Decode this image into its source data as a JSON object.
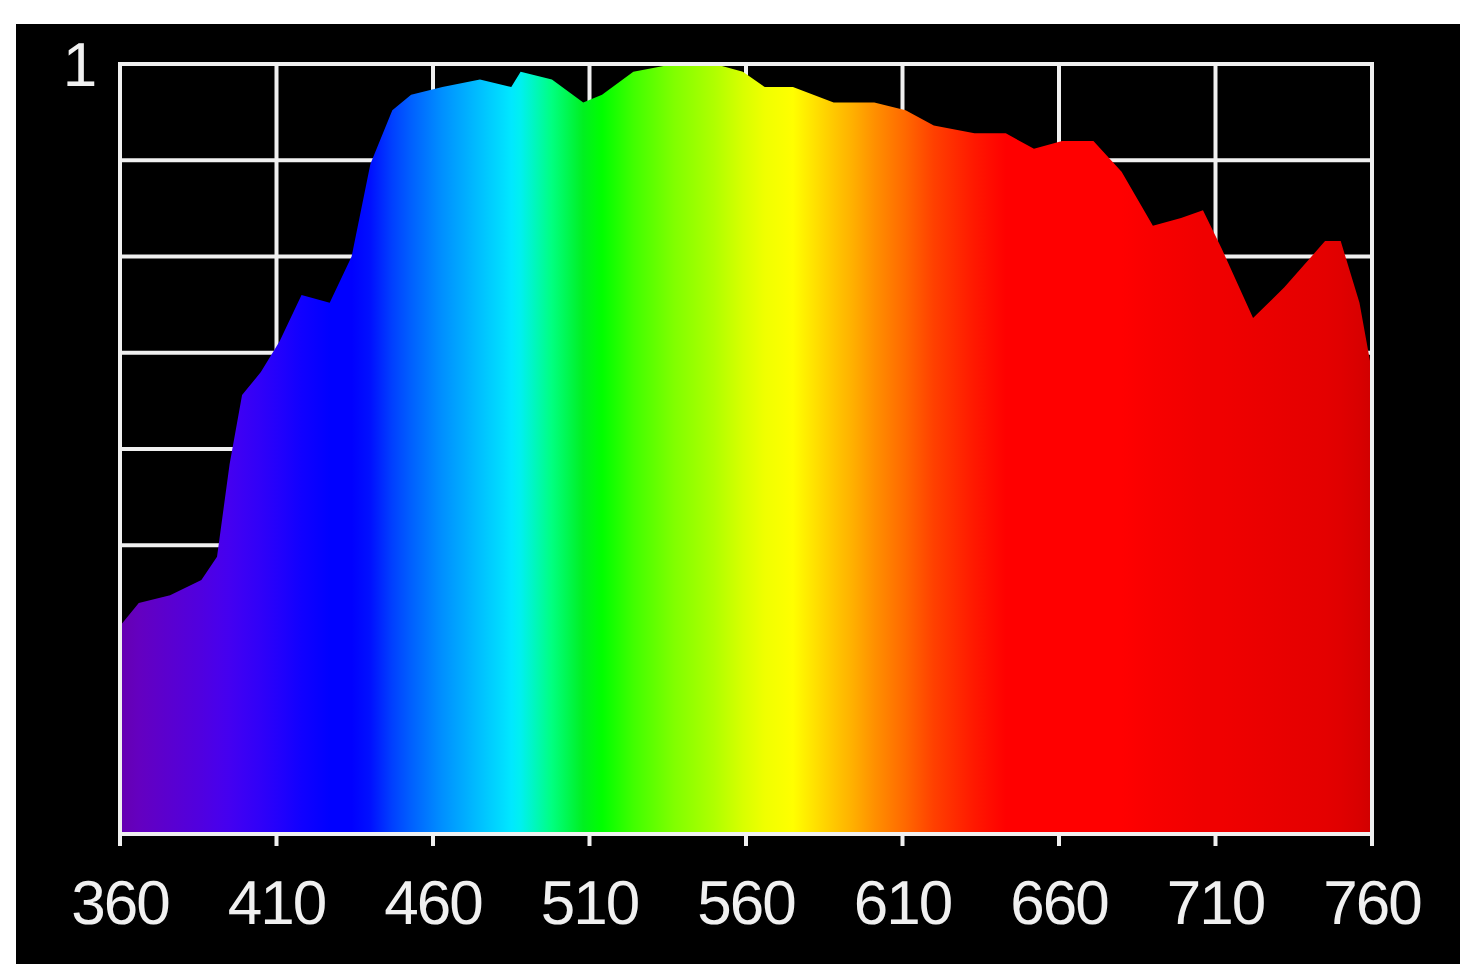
{
  "chart_data": {
    "type": "area",
    "x": [
      360,
      366,
      376,
      386,
      391,
      395,
      399,
      405,
      411,
      418,
      427,
      434,
      440,
      447,
      453,
      463,
      475,
      485,
      488,
      498,
      508,
      514,
      524,
      537,
      550,
      559,
      566,
      575,
      588,
      594,
      601,
      611,
      620,
      633,
      643,
      652,
      661,
      671,
      680,
      690,
      699,
      706,
      712,
      722,
      732,
      745,
      750,
      756,
      760
    ],
    "values": [
      0.27,
      0.3,
      0.31,
      0.33,
      0.36,
      0.48,
      0.57,
      0.6,
      0.64,
      0.7,
      0.69,
      0.75,
      0.87,
      0.94,
      0.96,
      0.97,
      0.98,
      0.97,
      0.99,
      0.98,
      0.95,
      0.96,
      0.99,
      1.0,
      1.0,
      0.99,
      0.97,
      0.97,
      0.95,
      0.95,
      0.95,
      0.94,
      0.92,
      0.91,
      0.91,
      0.89,
      0.9,
      0.9,
      0.86,
      0.79,
      0.8,
      0.81,
      0.76,
      0.67,
      0.71,
      0.77,
      0.77,
      0.69,
      0.6
    ],
    "colors": [
      "#6600b0",
      "#6400c0",
      "#5a00d0",
      "#5000e0",
      "#4a00ea",
      "#4400f0",
      "#3c00f4",
      "#3000f8",
      "#2200fc",
      "#1000ff",
      "#0000ff",
      "#0000ff",
      "#0010ff",
      "#0040ff",
      "#0060ff",
      "#0090ff",
      "#00c0ff",
      "#00e8ff",
      "#00f0f0",
      "#00ff80",
      "#00f020",
      "#00ff00",
      "#40ff00",
      "#80ff00",
      "#b0ff00",
      "#d8ff00",
      "#f0ff00",
      "#ffff00",
      "#ffc800",
      "#ffb000",
      "#ff9000",
      "#ff6800",
      "#ff4000",
      "#ff1800",
      "#ff0000",
      "#ff0000",
      "#ff0000",
      "#ff0000",
      "#ff0000",
      "#f80000",
      "#f40000",
      "#f00000",
      "#f00000",
      "#ec0000",
      "#e80000",
      "#e40000",
      "#e00000",
      "#d80000",
      "#d00000"
    ],
    "xlim": [
      360,
      760
    ],
    "xticks": [
      360,
      410,
      460,
      510,
      560,
      610,
      660,
      710,
      760
    ],
    "ylim": [
      0,
      1
    ],
    "yticks": [
      {
        "value": 0,
        "label": null
      },
      {
        "value": 0.375,
        "label": null
      },
      {
        "value": 0.5,
        "label": null
      },
      {
        "value": 0.625,
        "label": null
      },
      {
        "value": 0.75,
        "label": null
      },
      {
        "value": 0.875,
        "label": null
      },
      1
    ],
    "grid": true
  }
}
